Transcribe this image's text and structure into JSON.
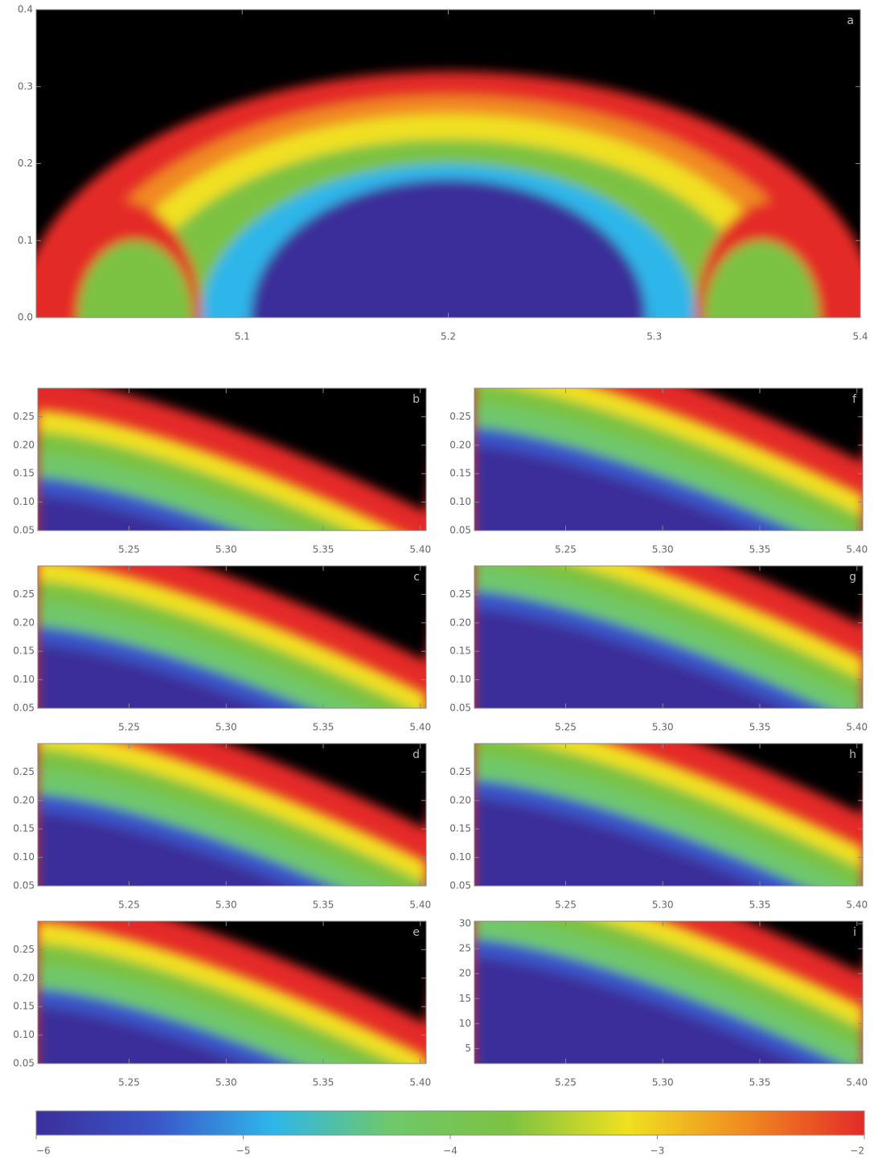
{
  "chart_data": [
    {
      "type": "heatmap",
      "label": "a",
      "xlim": [
        5.0,
        5.4
      ],
      "ylim": [
        0,
        0.4
      ],
      "xticks": [
        5.1,
        5.2,
        5.3,
        5.4
      ],
      "yticks": [
        {
          "value": 0,
          "label": "0.0"
        },
        0.1,
        0.2,
        0.3,
        0.4
      ]
    },
    {
      "type": "heatmap",
      "label": "b",
      "xlim": [
        5.203,
        5.403
      ],
      "ylim": [
        0.05,
        0.3
      ],
      "xticks": [
        5.25,
        {
          "value": 5.3,
          "label": "5.30"
        },
        5.35,
        {
          "value": 5.4,
          "label": "5.40"
        }
      ],
      "yticks": [
        0.05,
        {
          "value": 0.1,
          "label": "0.10"
        },
        0.15,
        {
          "value": 0.2,
          "label": "0.20"
        },
        0.25
      ]
    },
    {
      "type": "heatmap",
      "label": "c",
      "xlim": [
        5.203,
        5.403
      ],
      "ylim": [
        0.05,
        0.3
      ],
      "xticks": [
        5.25,
        {
          "value": 5.3,
          "label": "5.30"
        },
        5.35,
        {
          "value": 5.4,
          "label": "5.40"
        }
      ],
      "yticks": [
        0.05,
        {
          "value": 0.1,
          "label": "0.10"
        },
        0.15,
        {
          "value": 0.2,
          "label": "0.20"
        },
        0.25
      ]
    },
    {
      "type": "heatmap",
      "label": "d",
      "xlim": [
        5.203,
        5.403
      ],
      "ylim": [
        0.05,
        0.3
      ],
      "xticks": [
        5.25,
        {
          "value": 5.3,
          "label": "5.30"
        },
        5.35,
        {
          "value": 5.4,
          "label": "5.40"
        }
      ],
      "yticks": [
        0.05,
        {
          "value": 0.1,
          "label": "0.10"
        },
        0.15,
        {
          "value": 0.2,
          "label": "0.20"
        },
        0.25
      ]
    },
    {
      "type": "heatmap",
      "label": "e",
      "xlim": [
        5.203,
        5.403
      ],
      "ylim": [
        0.05,
        0.3
      ],
      "xticks": [
        5.25,
        {
          "value": 5.3,
          "label": "5.30"
        },
        5.35,
        {
          "value": 5.4,
          "label": "5.40"
        }
      ],
      "yticks": [
        0.05,
        {
          "value": 0.1,
          "label": "0.10"
        },
        0.15,
        {
          "value": 0.2,
          "label": "0.20"
        },
        0.25
      ]
    },
    {
      "type": "heatmap",
      "label": "f",
      "xlim": [
        5.203,
        5.403
      ],
      "ylim": [
        0.05,
        0.3
      ],
      "xticks": [
        5.25,
        {
          "value": 5.3,
          "label": "5.30"
        },
        5.35,
        {
          "value": 5.4,
          "label": "5.40"
        }
      ],
      "yticks": [
        0.05,
        {
          "value": 0.1,
          "label": "0.10"
        },
        0.15,
        {
          "value": 0.2,
          "label": "0.20"
        },
        0.25
      ]
    },
    {
      "type": "heatmap",
      "label": "g",
      "xlim": [
        5.203,
        5.403
      ],
      "ylim": [
        0.05,
        0.3
      ],
      "xticks": [
        5.25,
        {
          "value": 5.3,
          "label": "5.30"
        },
        5.35,
        {
          "value": 5.4,
          "label": "5.40"
        }
      ],
      "yticks": [
        0.05,
        {
          "value": 0.1,
          "label": "0.10"
        },
        0.15,
        {
          "value": 0.2,
          "label": "0.20"
        },
        0.25
      ]
    },
    {
      "type": "heatmap",
      "label": "h",
      "xlim": [
        5.203,
        5.403
      ],
      "ylim": [
        0.05,
        0.3
      ],
      "xticks": [
        5.25,
        {
          "value": 5.3,
          "label": "5.30"
        },
        5.35,
        {
          "value": 5.4,
          "label": "5.40"
        }
      ],
      "yticks": [
        0.05,
        {
          "value": 0.1,
          "label": "0.10"
        },
        0.15,
        {
          "value": 0.2,
          "label": "0.20"
        },
        0.25
      ]
    },
    {
      "type": "heatmap",
      "label": "i",
      "xlim": [
        5.203,
        5.403
      ],
      "ylim": [
        2,
        30.5
      ],
      "xticks": [
        5.25,
        {
          "value": 5.3,
          "label": "5.30"
        },
        5.35,
        {
          "value": 5.4,
          "label": "5.40"
        }
      ],
      "yticks": [
        5,
        10,
        15,
        20,
        25,
        30
      ]
    },
    {
      "type": "colorbar",
      "colors": [
        "#3b2f9a",
        "#3a55c8",
        "#2fb6ea",
        "#6fc86a",
        "#7cc242",
        "#f0e020",
        "#f08a20",
        "#e42a28"
      ],
      "xlim": [
        -6,
        -2
      ],
      "xticks": [
        {
          "value": -6,
          "label": "−6"
        },
        {
          "value": -5,
          "label": "−5"
        },
        {
          "value": -4,
          "label": "−4"
        },
        {
          "value": -3,
          "label": "−3"
        },
        {
          "value": -2,
          "label": "−2"
        }
      ]
    }
  ]
}
